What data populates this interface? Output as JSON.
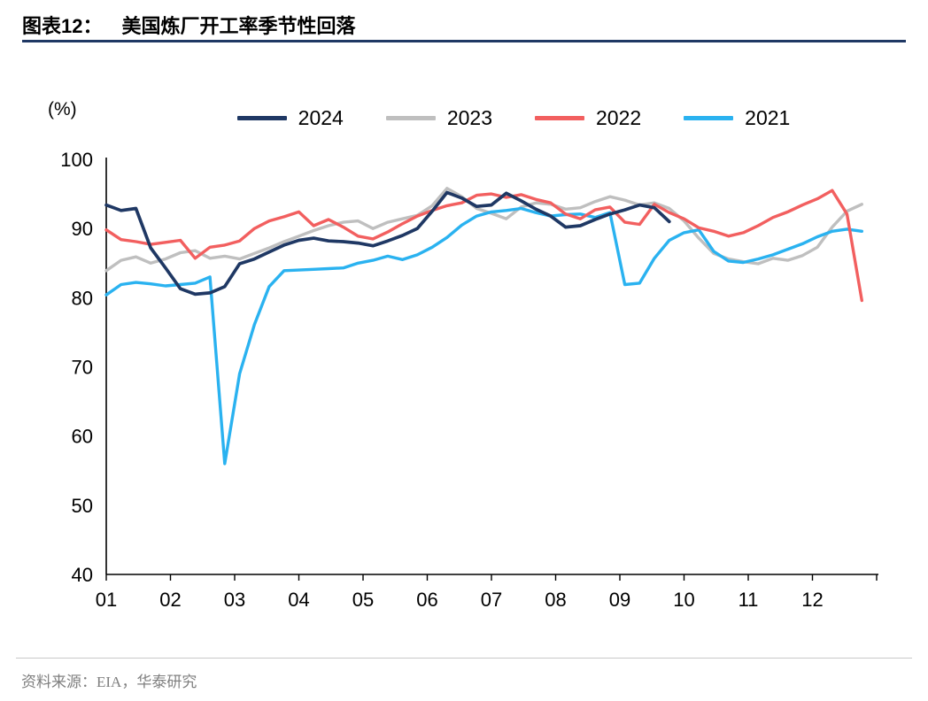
{
  "header": {
    "figure_tag": "图表12：",
    "figure_title": "美国炼厂开工率季节性回落"
  },
  "chart_data": {
    "type": "line",
    "title": "美国炼厂开工率季节性回落",
    "unit_label": "(%)",
    "ylim": [
      40,
      100
    ],
    "y_ticks": [
      100,
      90,
      80,
      70,
      60,
      50,
      40
    ],
    "x_tick_labels": [
      "01",
      "02",
      "03",
      "04",
      "05",
      "06",
      "07",
      "08",
      "09",
      "10",
      "11",
      "12"
    ],
    "x_domain": [
      1,
      13
    ],
    "x_start": 1,
    "x_step": 0.230769,
    "grid": false,
    "legend_position": "top",
    "axis_color": "#000000",
    "series": [
      {
        "name": "2024",
        "color": "#1F3864",
        "values": [
          93.4,
          92.6,
          92.9,
          87.2,
          84.3,
          81.3,
          80.5,
          80.7,
          81.6,
          84.9,
          85.6,
          86.6,
          87.6,
          88.3,
          88.6,
          88.2,
          88.1,
          87.9,
          87.5,
          88.2,
          89.0,
          90.0,
          92.5,
          95.2,
          94.4,
          93.2,
          93.4,
          95.1,
          94.0,
          92.8,
          91.8,
          90.2,
          90.4,
          91.3,
          92.1,
          92.7,
          93.4,
          93.0,
          91.0
        ]
      },
      {
        "name": "2023",
        "color": "#BFBFBF",
        "values": [
          83.9,
          85.4,
          85.9,
          85.0,
          85.6,
          86.5,
          86.8,
          85.7,
          86.0,
          85.6,
          86.4,
          87.2,
          88.1,
          88.9,
          89.7,
          90.4,
          90.9,
          91.1,
          90.0,
          90.9,
          91.4,
          91.9,
          93.3,
          95.8,
          94.6,
          92.9,
          92.2,
          91.4,
          93.1,
          93.7,
          93.5,
          92.8,
          93.0,
          93.9,
          94.6,
          94.1,
          93.4,
          93.7,
          92.9,
          91.1,
          88.6,
          86.4,
          85.6,
          85.2,
          84.9,
          85.7,
          85.4,
          86.1,
          87.3,
          90.2,
          92.5,
          93.5
        ]
      },
      {
        "name": "2022",
        "color": "#F25F5F",
        "values": [
          89.8,
          88.4,
          88.1,
          87.7,
          88.0,
          88.3,
          85.7,
          87.3,
          87.6,
          88.2,
          90.0,
          91.1,
          91.7,
          92.4,
          90.4,
          91.3,
          90.2,
          88.9,
          88.5,
          89.5,
          90.7,
          91.8,
          92.6,
          93.3,
          93.7,
          94.8,
          95.0,
          94.5,
          94.9,
          94.2,
          93.7,
          92.1,
          91.4,
          92.7,
          93.1,
          90.9,
          90.6,
          93.5,
          92.3,
          91.4,
          90.1,
          89.6,
          88.9,
          89.4,
          90.4,
          91.6,
          92.4,
          93.4,
          94.3,
          95.5,
          92.1,
          79.6
        ]
      },
      {
        "name": "2021",
        "color": "#2AB2F0",
        "values": [
          80.4,
          81.9,
          82.2,
          82.0,
          81.7,
          81.9,
          82.1,
          83.0,
          56.0,
          69.0,
          76.1,
          81.6,
          83.9,
          84.0,
          84.1,
          84.2,
          84.3,
          85.0,
          85.4,
          86.0,
          85.5,
          86.2,
          87.3,
          88.7,
          90.5,
          91.8,
          92.4,
          92.6,
          92.9,
          92.3,
          91.8,
          92.0,
          92.1,
          91.6,
          92.3,
          81.9,
          82.1,
          85.7,
          88.3,
          89.4,
          89.8,
          86.7,
          85.3,
          85.1,
          85.6,
          86.2,
          87.0,
          87.8,
          88.8,
          89.6,
          89.9,
          89.6
        ]
      }
    ]
  },
  "footer": {
    "source": "资料来源：EIA，华泰研究"
  }
}
